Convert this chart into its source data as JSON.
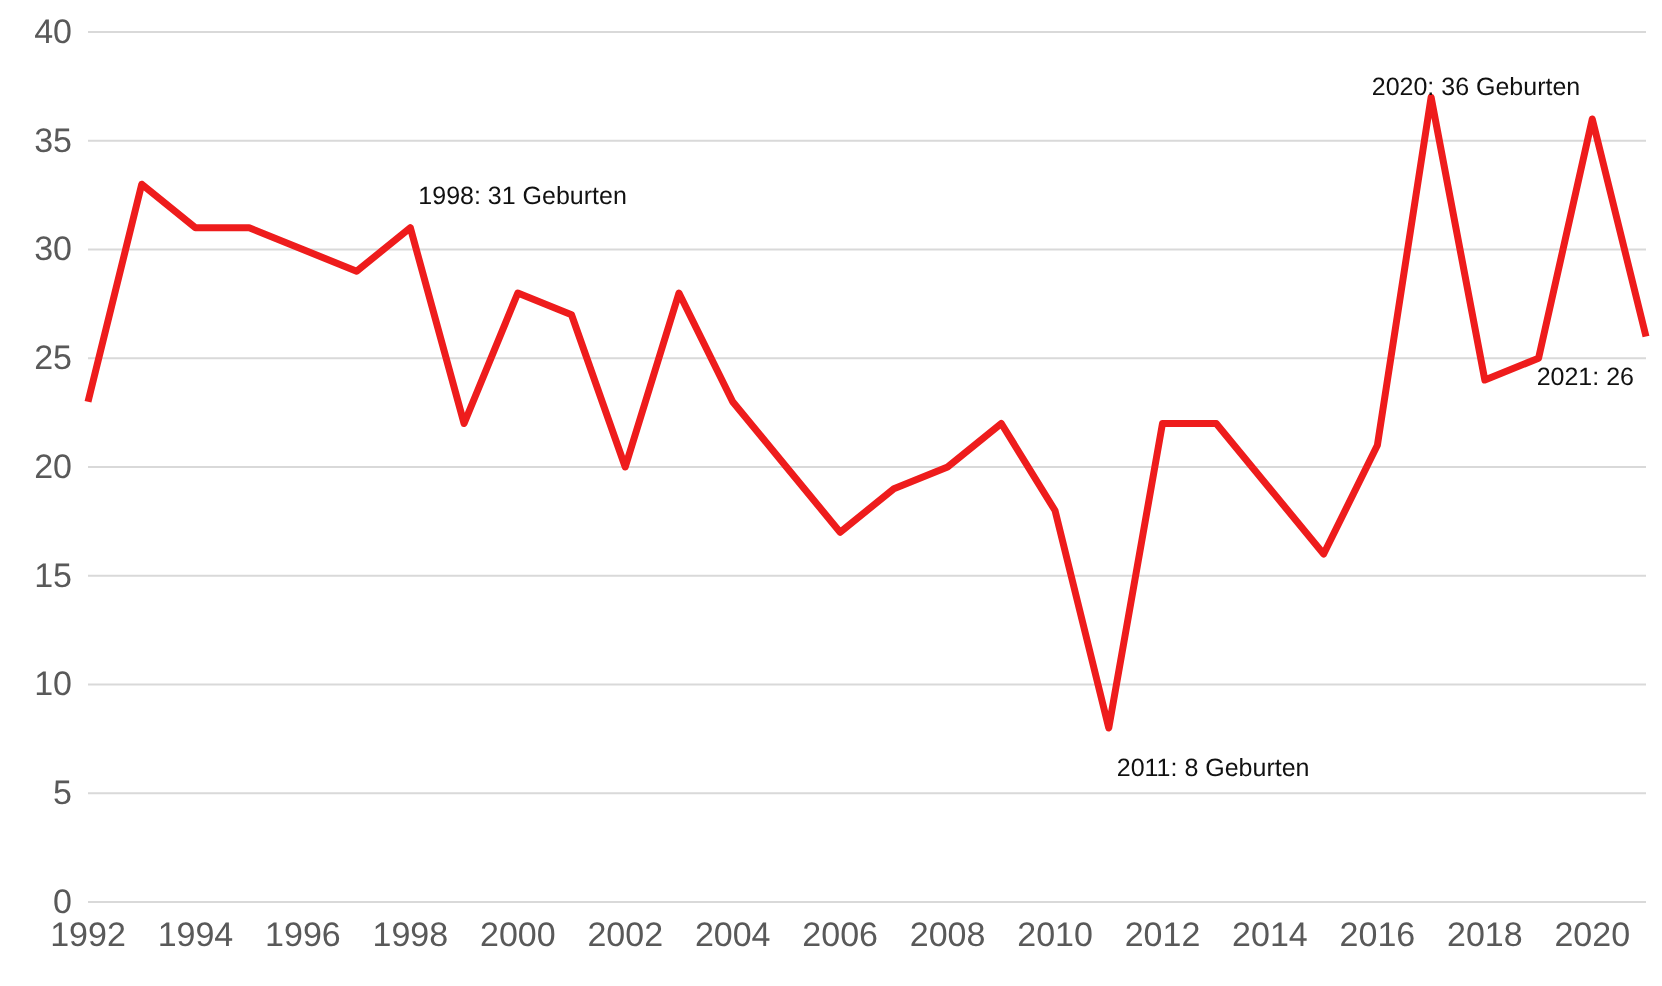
{
  "chart_data": {
    "type": "line",
    "x": [
      1992,
      1993,
      1994,
      1995,
      1996,
      1997,
      1998,
      1999,
      2000,
      2001,
      2002,
      2003,
      2004,
      2005,
      2006,
      2007,
      2008,
      2009,
      2010,
      2011,
      2012,
      2013,
      2014,
      2015,
      2016,
      2017,
      2018,
      2019,
      2020,
      2021
    ],
    "series": [
      {
        "color": "#ee1c1c",
        "values": [
          23,
          33,
          31,
          31,
          30,
          29,
          31,
          22,
          28,
          27,
          20,
          28,
          23,
          20,
          17,
          19,
          20,
          22,
          18,
          8,
          22,
          22,
          19,
          16,
          21,
          37,
          24,
          25,
          36,
          26
        ]
      }
    ],
    "xlim": [
      1992,
      2021
    ],
    "xticks": [
      1992,
      1994,
      1996,
      1998,
      2000,
      2002,
      2004,
      2006,
      2008,
      2010,
      2012,
      2014,
      2016,
      2018,
      2020
    ],
    "ylim": [
      0,
      40
    ],
    "yticks": [
      0,
      5,
      10,
      15,
      20,
      25,
      30,
      35,
      40
    ],
    "grid": "y",
    "marker": "none",
    "line_style": "solid",
    "annotations": [
      {
        "text": "1998: 31 Geburten",
        "x": 1998,
        "y": 31
      },
      {
        "text": "2011: 8 Geburten",
        "x": 2011,
        "y": 8
      },
      {
        "text": "2020: 36 Geburten",
        "x": 2020,
        "y": 36
      },
      {
        "text": "2021: 26",
        "x": 2021,
        "y": 26
      }
    ]
  }
}
